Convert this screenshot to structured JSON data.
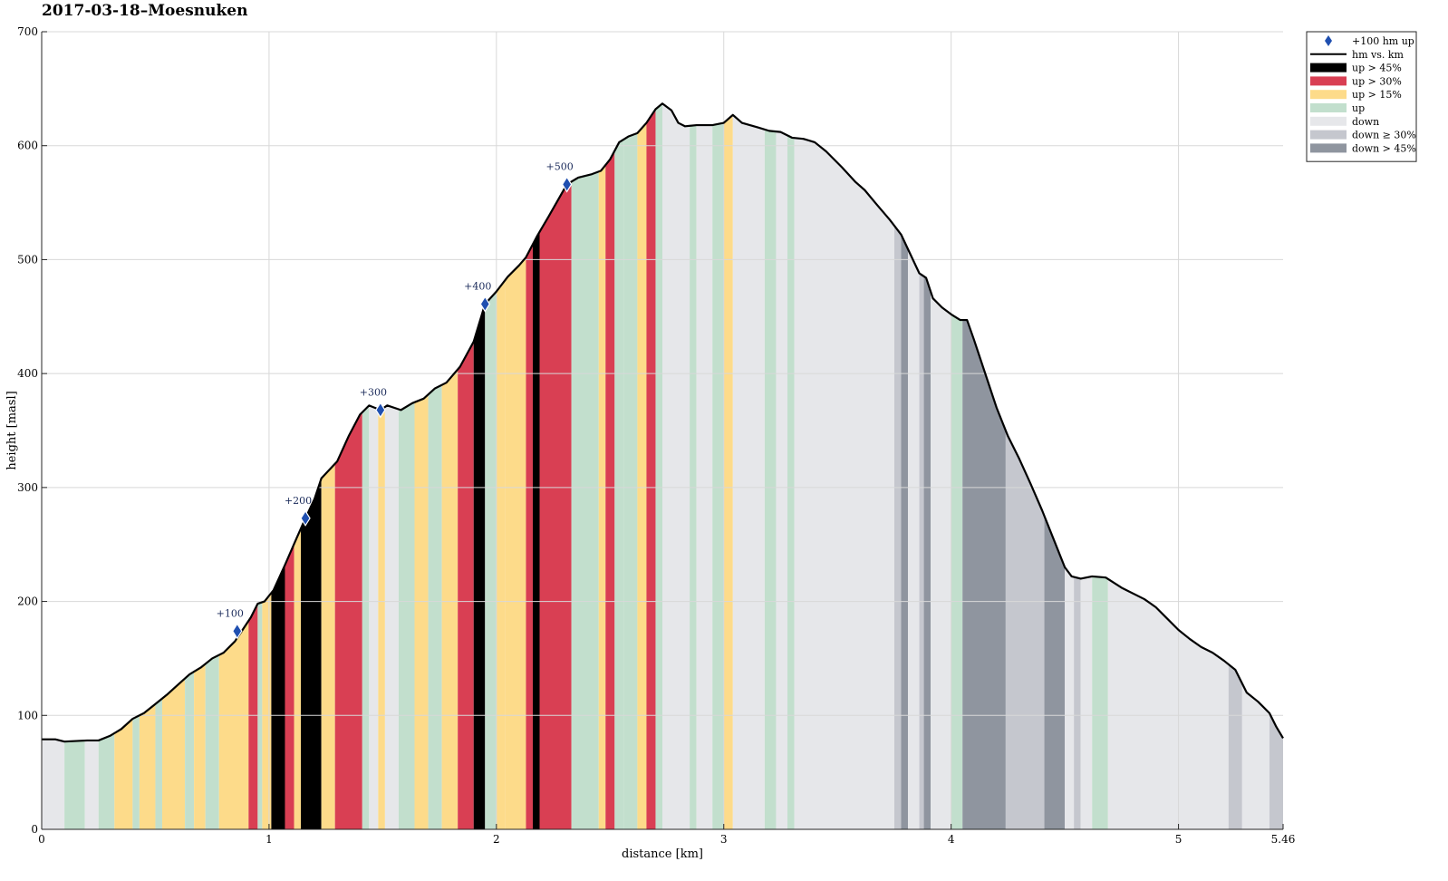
{
  "chart_data": {
    "type": "area",
    "title": "2017-03-18–Moesnuken",
    "xlabel": "distance [km]",
    "ylabel": "height [masl]",
    "xlim": [
      0,
      5.46
    ],
    "ylim": [
      0,
      700
    ],
    "xticks": [
      0,
      1,
      2,
      3,
      4,
      5,
      5.46
    ],
    "xtick_labels": [
      "0",
      "1",
      "2",
      "3",
      "4",
      "5",
      "5.46"
    ],
    "yticks": [
      0,
      100,
      200,
      300,
      400,
      500,
      600,
      700
    ],
    "ytick_labels": [
      "0",
      "100",
      "200",
      "300",
      "400",
      "500",
      "600",
      "700"
    ],
    "grid": true,
    "legend_position": "outside-top-right",
    "categories": {
      "up45": {
        "label": "up > 45%",
        "color": "#000000"
      },
      "up30": {
        "label": "up > 30%",
        "color": "#d93f53"
      },
      "up15": {
        "label": "up > 15%",
        "color": "#fddb8a"
      },
      "up": {
        "label": "up",
        "color": "#c2dfcd"
      },
      "down": {
        "label": "down",
        "color": "#e6e7ea"
      },
      "down30": {
        "label": "down ≥ 30%",
        "color": "#c5c7ce"
      },
      "down45": {
        "label": "down > 45%",
        "color": "#8f959f"
      }
    },
    "legend": [
      {
        "key": "marker",
        "label": "+100 hm up",
        "color": "#1f4fb0"
      },
      {
        "key": "line",
        "label": "hm vs. km",
        "color": "#000000"
      },
      {
        "key": "up45",
        "label": "up > 45%"
      },
      {
        "key": "up30",
        "label": "up > 30%"
      },
      {
        "key": "up15",
        "label": "up > 15%"
      },
      {
        "key": "up",
        "label": "up"
      },
      {
        "key": "down",
        "label": "down"
      },
      {
        "key": "down30",
        "label": "down ≥ 30%"
      },
      {
        "key": "down45",
        "label": "down > 45%"
      }
    ],
    "profile": [
      [
        0,
        79
      ],
      [
        0.06,
        79
      ],
      [
        0.1,
        77
      ],
      [
        0.2,
        78
      ],
      [
        0.25,
        78
      ],
      [
        0.3,
        82
      ],
      [
        0.35,
        88
      ],
      [
        0.4,
        97
      ],
      [
        0.45,
        102
      ],
      [
        0.5,
        110
      ],
      [
        0.55,
        118
      ],
      [
        0.6,
        127
      ],
      [
        0.65,
        136
      ],
      [
        0.7,
        142
      ],
      [
        0.75,
        150
      ],
      [
        0.8,
        155
      ],
      [
        0.85,
        165
      ],
      [
        0.88,
        174
      ],
      [
        0.92,
        186
      ],
      [
        0.95,
        198
      ],
      [
        0.98,
        200
      ],
      [
        1.02,
        210
      ],
      [
        1.07,
        232
      ],
      [
        1.12,
        255
      ],
      [
        1.16,
        273
      ],
      [
        1.2,
        290
      ],
      [
        1.23,
        308
      ],
      [
        1.3,
        323
      ],
      [
        1.35,
        345
      ],
      [
        1.4,
        364
      ],
      [
        1.44,
        372
      ],
      [
        1.49,
        368
      ],
      [
        1.52,
        372
      ],
      [
        1.58,
        368
      ],
      [
        1.63,
        374
      ],
      [
        1.68,
        378
      ],
      [
        1.73,
        387
      ],
      [
        1.78,
        392
      ],
      [
        1.84,
        406
      ],
      [
        1.9,
        428
      ],
      [
        1.95,
        461
      ],
      [
        2.0,
        472
      ],
      [
        2.05,
        485
      ],
      [
        2.1,
        495
      ],
      [
        2.13,
        502
      ],
      [
        2.18,
        521
      ],
      [
        2.23,
        538
      ],
      [
        2.27,
        552
      ],
      [
        2.31,
        566
      ],
      [
        2.36,
        572
      ],
      [
        2.42,
        575
      ],
      [
        2.46,
        578
      ],
      [
        2.5,
        588
      ],
      [
        2.54,
        603
      ],
      [
        2.58,
        608
      ],
      [
        2.62,
        611
      ],
      [
        2.66,
        620
      ],
      [
        2.7,
        632
      ],
      [
        2.73,
        637
      ],
      [
        2.77,
        631
      ],
      [
        2.8,
        620
      ],
      [
        2.83,
        617
      ],
      [
        2.88,
        618
      ],
      [
        2.95,
        618
      ],
      [
        3.0,
        620
      ],
      [
        3.04,
        627
      ],
      [
        3.08,
        620
      ],
      [
        3.15,
        616
      ],
      [
        3.2,
        613
      ],
      [
        3.25,
        612
      ],
      [
        3.3,
        607
      ],
      [
        3.35,
        606
      ],
      [
        3.4,
        603
      ],
      [
        3.45,
        595
      ],
      [
        3.52,
        581
      ],
      [
        3.58,
        568
      ],
      [
        3.62,
        561
      ],
      [
        3.67,
        549
      ],
      [
        3.73,
        535
      ],
      [
        3.78,
        522
      ],
      [
        3.82,
        505
      ],
      [
        3.86,
        488
      ],
      [
        3.89,
        484
      ],
      [
        3.92,
        466
      ],
      [
        3.96,
        458
      ],
      [
        4.0,
        452
      ],
      [
        4.04,
        447
      ],
      [
        4.07,
        447
      ],
      [
        4.1,
        430
      ],
      [
        4.15,
        400
      ],
      [
        4.2,
        370
      ],
      [
        4.25,
        345
      ],
      [
        4.3,
        325
      ],
      [
        4.35,
        303
      ],
      [
        4.4,
        280
      ],
      [
        4.45,
        255
      ],
      [
        4.5,
        230
      ],
      [
        4.53,
        222
      ],
      [
        4.57,
        220
      ],
      [
        4.62,
        222
      ],
      [
        4.68,
        221
      ],
      [
        4.75,
        212
      ],
      [
        4.85,
        202
      ],
      [
        4.9,
        195
      ],
      [
        4.95,
        185
      ],
      [
        5.0,
        175
      ],
      [
        5.05,
        167
      ],
      [
        5.1,
        160
      ],
      [
        5.15,
        155
      ],
      [
        5.2,
        148
      ],
      [
        5.25,
        140
      ],
      [
        5.3,
        120
      ],
      [
        5.35,
        112
      ],
      [
        5.4,
        102
      ],
      [
        5.43,
        90
      ],
      [
        5.46,
        80
      ]
    ],
    "segments": [
      [
        0.0,
        0.1,
        "down"
      ],
      [
        0.1,
        0.19,
        "up"
      ],
      [
        0.19,
        0.25,
        "down"
      ],
      [
        0.25,
        0.32,
        "up"
      ],
      [
        0.32,
        0.4,
        "up15"
      ],
      [
        0.4,
        0.43,
        "up"
      ],
      [
        0.43,
        0.5,
        "up15"
      ],
      [
        0.5,
        0.53,
        "up"
      ],
      [
        0.53,
        0.63,
        "up15"
      ],
      [
        0.63,
        0.67,
        "up"
      ],
      [
        0.67,
        0.72,
        "up15"
      ],
      [
        0.72,
        0.78,
        "up"
      ],
      [
        0.78,
        0.91,
        "up15"
      ],
      [
        0.91,
        0.95,
        "up30"
      ],
      [
        0.95,
        0.97,
        "up"
      ],
      [
        0.97,
        1.01,
        "up15"
      ],
      [
        1.01,
        1.07,
        "up45"
      ],
      [
        1.07,
        1.11,
        "up30"
      ],
      [
        1.11,
        1.14,
        "up15"
      ],
      [
        1.14,
        1.23,
        "up45"
      ],
      [
        1.23,
        1.29,
        "up15"
      ],
      [
        1.29,
        1.41,
        "up30"
      ],
      [
        1.41,
        1.44,
        "up"
      ],
      [
        1.44,
        1.48,
        "down"
      ],
      [
        1.48,
        1.51,
        "up15"
      ],
      [
        1.51,
        1.57,
        "down"
      ],
      [
        1.57,
        1.64,
        "up"
      ],
      [
        1.64,
        1.7,
        "up15"
      ],
      [
        1.7,
        1.76,
        "up"
      ],
      [
        1.76,
        1.83,
        "up15"
      ],
      [
        1.83,
        1.9,
        "up30"
      ],
      [
        1.9,
        1.95,
        "up45"
      ],
      [
        1.95,
        2.0,
        "up"
      ],
      [
        2.0,
        2.04,
        "up15"
      ],
      [
        2.04,
        2.13,
        "up15"
      ],
      [
        2.13,
        2.16,
        "up30"
      ],
      [
        2.16,
        2.19,
        "up45"
      ],
      [
        2.19,
        2.33,
        "up30"
      ],
      [
        2.33,
        2.45,
        "up"
      ],
      [
        2.45,
        2.48,
        "up15"
      ],
      [
        2.48,
        2.52,
        "up30"
      ],
      [
        2.52,
        2.56,
        "up"
      ],
      [
        2.56,
        2.62,
        "up"
      ],
      [
        2.62,
        2.66,
        "up15"
      ],
      [
        2.66,
        2.7,
        "up30"
      ],
      [
        2.7,
        2.73,
        "up"
      ],
      [
        2.73,
        2.85,
        "down"
      ],
      [
        2.85,
        2.88,
        "up"
      ],
      [
        2.88,
        2.95,
        "down"
      ],
      [
        2.95,
        3.0,
        "up"
      ],
      [
        3.0,
        3.04,
        "up15"
      ],
      [
        3.04,
        3.18,
        "down"
      ],
      [
        3.18,
        3.23,
        "up"
      ],
      [
        3.23,
        3.28,
        "down"
      ],
      [
        3.28,
        3.31,
        "up"
      ],
      [
        3.31,
        3.75,
        "down"
      ],
      [
        3.75,
        3.78,
        "down30"
      ],
      [
        3.78,
        3.81,
        "down45"
      ],
      [
        3.81,
        3.86,
        "down"
      ],
      [
        3.86,
        3.88,
        "down30"
      ],
      [
        3.88,
        3.91,
        "down45"
      ],
      [
        3.91,
        4.0,
        "down"
      ],
      [
        4.0,
        4.05,
        "up"
      ],
      [
        4.05,
        4.24,
        "down45"
      ],
      [
        4.24,
        4.41,
        "down30"
      ],
      [
        4.41,
        4.5,
        "down45"
      ],
      [
        4.5,
        4.54,
        "down"
      ],
      [
        4.54,
        4.57,
        "down30"
      ],
      [
        4.57,
        4.62,
        "down"
      ],
      [
        4.62,
        4.69,
        "up"
      ],
      [
        4.69,
        5.22,
        "down"
      ],
      [
        5.22,
        5.28,
        "down30"
      ],
      [
        5.28,
        5.4,
        "down"
      ],
      [
        5.4,
        5.46,
        "down30"
      ]
    ],
    "markers": [
      {
        "x": 0.86,
        "y": 174,
        "label": "+100"
      },
      {
        "x": 1.16,
        "y": 273,
        "label": "+200"
      },
      {
        "x": 1.49,
        "y": 368,
        "label": "+300"
      },
      {
        "x": 1.95,
        "y": 461,
        "label": "+400"
      },
      {
        "x": 2.31,
        "y": 566,
        "label": "+500"
      }
    ]
  }
}
